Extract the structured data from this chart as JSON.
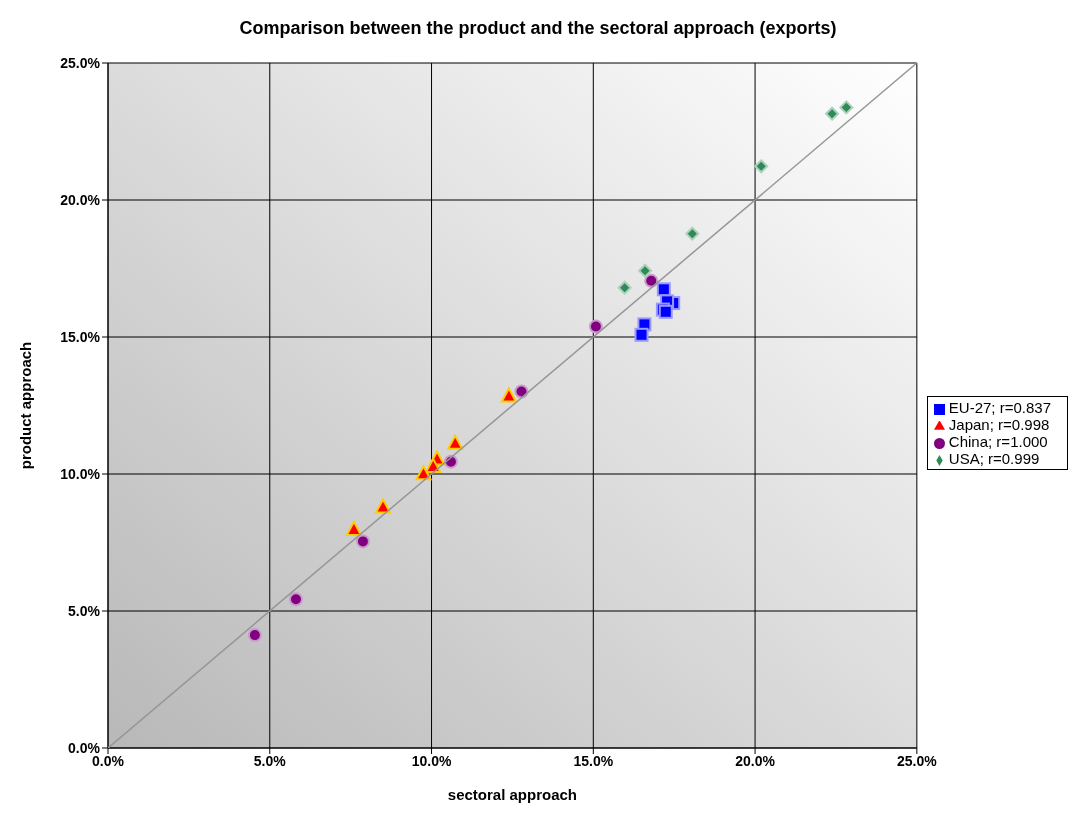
{
  "chart_data": {
    "type": "scatter",
    "title": "Comparison between the product and the sectoral approach (exports)",
    "xlabel": "sectoral approach",
    "ylabel": "product approach",
    "xlim": [
      0,
      25
    ],
    "ylim": [
      0,
      25
    ],
    "xticks": [
      {
        "value": 0,
        "label": "0.0%"
      },
      {
        "value": 5,
        "label": "5.0%"
      },
      {
        "value": 10,
        "label": "10.0%"
      },
      {
        "value": 15,
        "label": "15.0%"
      },
      {
        "value": 20,
        "label": "20.0%"
      },
      {
        "value": 25,
        "label": "25.0%"
      }
    ],
    "yticks": [
      {
        "value": 0,
        "label": "0.0%"
      },
      {
        "value": 5,
        "label": "5.0%"
      },
      {
        "value": 10,
        "label": "10.0%"
      },
      {
        "value": 15,
        "label": "15.0%"
      },
      {
        "value": 20,
        "label": "20.0%"
      },
      {
        "value": 25,
        "label": "25.0%"
      }
    ],
    "grid": true,
    "legend": "right",
    "series": [
      {
        "name": "EU-27; r=0.837",
        "color": "#0000ff",
        "marker": "square",
        "x": [
          17.18,
          17.47,
          17.28,
          17.15,
          17.24,
          16.58,
          16.49
        ],
        "values": [
          16.74,
          16.24,
          16.3,
          16.0,
          15.92,
          15.46,
          15.08
        ]
      },
      {
        "name": "Japan; r=0.998",
        "color": "#ff0000",
        "marker": "triangle",
        "x": [
          12.39,
          10.73,
          10.17,
          10.05,
          9.75,
          8.5,
          7.6
        ],
        "values": [
          12.83,
          11.1,
          10.53,
          10.26,
          9.99,
          8.78,
          7.96
        ]
      },
      {
        "name": "China; r=1.000",
        "color": "#800080",
        "marker": "circle",
        "x": [
          4.54,
          5.81,
          7.88,
          10.6,
          12.78,
          15.08,
          16.79
        ],
        "values": [
          4.12,
          5.43,
          7.54,
          10.45,
          13.01,
          15.38,
          17.05
        ]
      },
      {
        "name": "USA; r=0.999",
        "color": "#2e8b57",
        "marker": "diamond",
        "x": [
          22.82,
          22.38,
          20.19,
          18.06,
          16.6,
          15.97
        ],
        "values": [
          23.38,
          23.15,
          21.23,
          18.77,
          17.42,
          16.8
        ]
      },
      {
        "type": "line",
        "color": "#969696",
        "marker": "none",
        "x": [
          0,
          25
        ],
        "values": [
          0,
          25
        ]
      }
    ]
  }
}
